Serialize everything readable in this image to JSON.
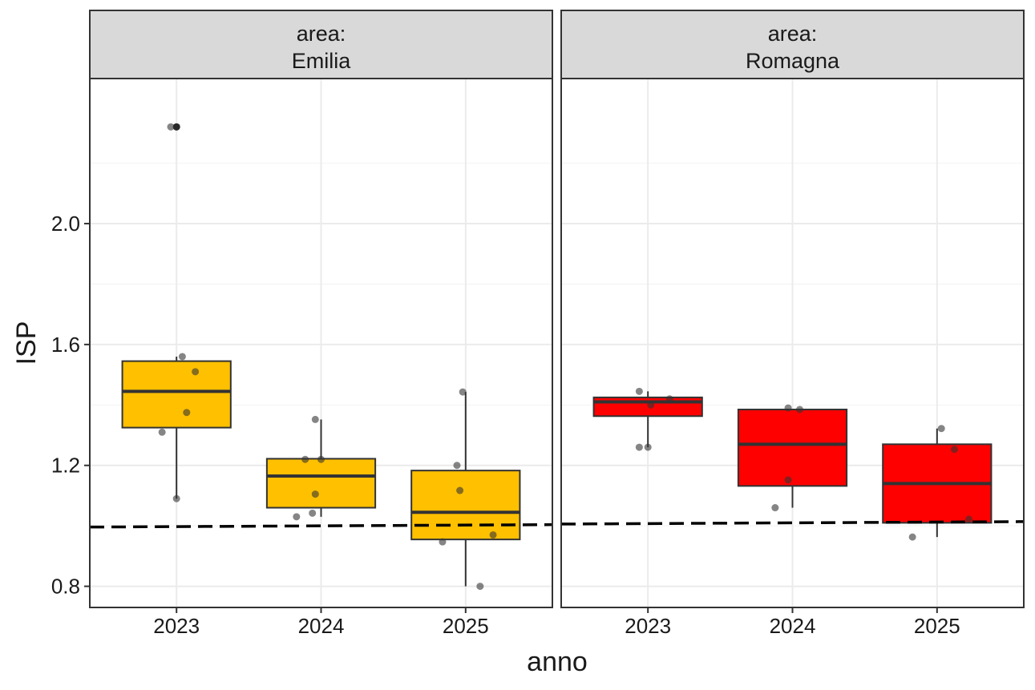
{
  "chart_data": {
    "type": "boxplot",
    "x_label": "anno",
    "y_label": "ISP",
    "y_ticks": [
      "0.8",
      "1.2",
      "1.6",
      "2.0"
    ],
    "ylim": [
      0.73,
      2.48
    ],
    "grid": true,
    "reference_line": {
      "style": "dashed",
      "color": "#000000",
      "approx_value": 1.0
    },
    "colors": {
      "Emilia": "#FFC000",
      "Romagna": "#FF0000",
      "median": "#333333",
      "points": "#333333",
      "strip": "#D9D9D9"
    },
    "facets": [
      {
        "strip_line1": "area:",
        "strip_line2": "Emilia",
        "fill": "#FFC000",
        "categories": [
          "2023",
          "2024",
          "2025"
        ],
        "boxes": [
          {
            "x": "2023",
            "min": 1.09,
            "q1": 1.325,
            "median": 1.445,
            "q3": 1.545,
            "max": 1.56
          },
          {
            "x": "2024",
            "min": 1.03,
            "q1": 1.06,
            "median": 1.165,
            "q3": 1.222,
            "max": 1.352
          },
          {
            "x": "2025",
            "min": 0.8,
            "q1": 0.955,
            "median": 1.045,
            "q3": 1.183,
            "max": 1.443
          }
        ],
        "outliers": [
          {
            "x": "2023",
            "y": 2.32
          }
        ],
        "points": [
          {
            "x": "2023",
            "dx": -0.04,
            "y": 2.32
          },
          {
            "x": "2023",
            "dx": 0.0,
            "y": 2.32
          },
          {
            "x": "2023",
            "dx": 0.04,
            "y": 1.56
          },
          {
            "x": "2023",
            "dx": 0.13,
            "y": 1.51
          },
          {
            "x": "2023",
            "dx": 0.07,
            "y": 1.375
          },
          {
            "x": "2023",
            "dx": -0.1,
            "y": 1.31
          },
          {
            "x": "2023",
            "dx": 0.0,
            "y": 1.09
          },
          {
            "x": "2024",
            "dx": -0.11,
            "y": 1.22
          },
          {
            "x": "2024",
            "dx": 0.0,
            "y": 1.22
          },
          {
            "x": "2024",
            "dx": -0.04,
            "y": 1.352
          },
          {
            "x": "2024",
            "dx": -0.04,
            "y": 1.105
          },
          {
            "x": "2024",
            "dx": -0.06,
            "y": 1.042
          },
          {
            "x": "2024",
            "dx": -0.17,
            "y": 1.03
          },
          {
            "x": "2025",
            "dx": -0.06,
            "y": 1.2
          },
          {
            "x": "2025",
            "dx": -0.04,
            "y": 1.117
          },
          {
            "x": "2025",
            "dx": -0.02,
            "y": 1.443
          },
          {
            "x": "2025",
            "dx": 0.19,
            "y": 0.97
          },
          {
            "x": "2025",
            "dx": -0.16,
            "y": 0.947
          },
          {
            "x": "2025",
            "dx": 0.1,
            "y": 0.8
          }
        ]
      },
      {
        "strip_line1": "area:",
        "strip_line2": "Romagna",
        "fill": "#FF0000",
        "categories": [
          "2023",
          "2024",
          "2025"
        ],
        "boxes": [
          {
            "x": "2023",
            "min": 1.26,
            "q1": 1.363,
            "median": 1.41,
            "q3": 1.425,
            "max": 1.445
          },
          {
            "x": "2024",
            "min": 1.06,
            "q1": 1.132,
            "median": 1.27,
            "q3": 1.385,
            "max": 1.385
          },
          {
            "x": "2025",
            "min": 0.963,
            "q1": 1.01,
            "median": 1.14,
            "q3": 1.27,
            "max": 1.322
          }
        ],
        "outliers": [],
        "points": [
          {
            "x": "2023",
            "dx": -0.06,
            "y": 1.445
          },
          {
            "x": "2023",
            "dx": 0.15,
            "y": 1.42
          },
          {
            "x": "2023",
            "dx": 0.02,
            "y": 1.4
          },
          {
            "x": "2023",
            "dx": -0.06,
            "y": 1.26
          },
          {
            "x": "2023",
            "dx": 0.0,
            "y": 1.26
          },
          {
            "x": "2024",
            "dx": -0.03,
            "y": 1.39
          },
          {
            "x": "2024",
            "dx": 0.05,
            "y": 1.385
          },
          {
            "x": "2024",
            "dx": -0.03,
            "y": 1.152
          },
          {
            "x": "2024",
            "dx": -0.12,
            "y": 1.06
          },
          {
            "x": "2025",
            "dx": 0.03,
            "y": 1.322
          },
          {
            "x": "2025",
            "dx": 0.12,
            "y": 1.253
          },
          {
            "x": "2025",
            "dx": 0.22,
            "y": 1.022
          },
          {
            "x": "2025",
            "dx": -0.17,
            "y": 0.963
          }
        ]
      }
    ]
  }
}
